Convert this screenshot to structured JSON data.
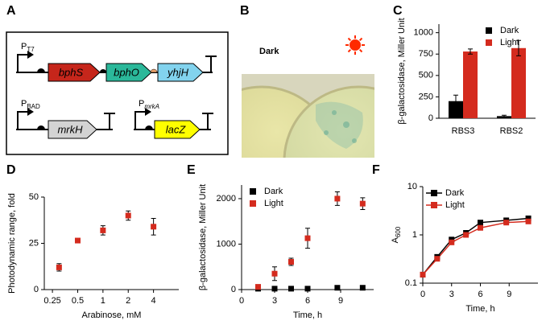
{
  "panel_labels": [
    "A",
    "B",
    "C",
    "D",
    "E",
    "F"
  ],
  "panel_a": {
    "promoters": [
      {
        "label": "P",
        "subscript": "T7"
      },
      {
        "label": "P",
        "subscript": "BAD"
      },
      {
        "label": "P",
        "subscript": "mrkA"
      }
    ],
    "genes": [
      "bphS",
      "bphO",
      "yhjH",
      "mrkH",
      "lacZ"
    ]
  },
  "panel_b": {
    "label": "Dark"
  },
  "chart_data": [
    {
      "type": "bar",
      "categories": [
        "RBS3",
        "RBS2"
      ],
      "series": [
        {
          "name": "Dark",
          "color": "#000000",
          "values": [
            200,
            25
          ],
          "errors": [
            70,
            10
          ]
        },
        {
          "name": "Light",
          "color": "#d42b1e",
          "values": [
            780,
            820
          ],
          "errors": [
            30,
            90
          ]
        }
      ],
      "ylim": [
        0,
        1100
      ],
      "yticks": [
        0,
        250,
        500,
        750,
        1000
      ],
      "y_label": "β-galactosidase, Miller Unit",
      "legend": "upper right"
    },
    {
      "type": "scatter",
      "x": [
        0.3,
        0.5,
        1,
        2,
        4
      ],
      "series": [
        {
          "color": "#d42b1e",
          "values": [
            12,
            26.5,
            32,
            40,
            34
          ],
          "errors": [
            2,
            1,
            2.5,
            2.5,
            4.5
          ]
        }
      ],
      "xscale": "log",
      "xlim": [
        0.2,
        8
      ],
      "xticks": [
        0.25,
        0.5,
        1,
        2,
        4
      ],
      "ylim": [
        0,
        50
      ],
      "yticks": [
        0,
        25,
        50
      ],
      "x_label": "Arabinose, mM",
      "y_label": "Photodynamic range, fold"
    },
    {
      "type": "scatter",
      "x": [
        1.5,
        3,
        4.5,
        6,
        8.7,
        11
      ],
      "series": [
        {
          "name": "Dark",
          "color": "#000000",
          "values": [
            20,
            20,
            20,
            20,
            40,
            40
          ],
          "errors": [
            5,
            5,
            5,
            5,
            10,
            10
          ]
        },
        {
          "name": "Light",
          "color": "#d42b1e",
          "values": [
            60,
            350,
            610,
            1130,
            2000,
            1890
          ],
          "errors": [
            30,
            150,
            80,
            220,
            150,
            130
          ]
        }
      ],
      "xlim": [
        0,
        12
      ],
      "xticks": [
        0,
        3,
        6,
        9
      ],
      "ylim": [
        0,
        2300
      ],
      "yticks": [
        0,
        1000,
        2000
      ],
      "x_label": "Time, h",
      "y_label": "β-galactosidase, Miller Unit",
      "legend": "upper left"
    },
    {
      "type": "line",
      "x": [
        0,
        1.5,
        3,
        4.5,
        6,
        8.7,
        11
      ],
      "series": [
        {
          "name": "Dark",
          "color": "#000000",
          "values": [
            0.15,
            0.35,
            0.8,
            1.1,
            1.8,
            2.0,
            2.2
          ]
        },
        {
          "name": "Light",
          "color": "#d42b1e",
          "values": [
            0.15,
            0.32,
            0.7,
            1.0,
            1.4,
            1.8,
            1.9
          ]
        }
      ],
      "xlim": [
        0,
        12
      ],
      "xticks": [
        0,
        3,
        6,
        9
      ],
      "yscale": "log",
      "ylim": [
        0.1,
        10
      ],
      "yticks": [
        0.1,
        1,
        10
      ],
      "x_label": "Time, h",
      "y_label": "A",
      "y_label_subscript": "600",
      "legend": "upper left"
    }
  ]
}
